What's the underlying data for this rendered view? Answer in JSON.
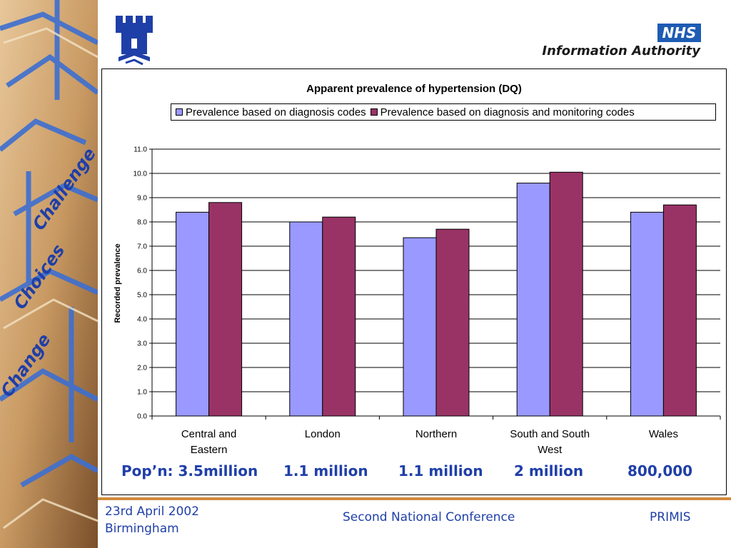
{
  "header": {
    "nhs_logo_text": "NHS",
    "org_name": "Information Authority"
  },
  "side_banner": {
    "words": [
      "Challenge",
      "Choices",
      "Change"
    ]
  },
  "chart_data": {
    "type": "bar",
    "title": "Apparent prevalence of hypertension (DQ)",
    "ylabel": "Recorded prevalence",
    "xlabel": "",
    "categories": [
      "Central and Eastern",
      "London",
      "Northern",
      "South and South West",
      "Wales"
    ],
    "series": [
      {
        "name": "Prevalence based on diagnosis codes",
        "color": "#9999ff",
        "values": [
          8.4,
          8.0,
          7.35,
          9.6,
          8.4
        ]
      },
      {
        "name": "Prevalence based on diagnosis and monitoring codes",
        "color": "#993366",
        "values": [
          8.8,
          8.2,
          7.7,
          10.05,
          8.7
        ]
      }
    ],
    "ylim": [
      0,
      11
    ],
    "yticks": [
      "0.0",
      "1.0",
      "2.0",
      "3.0",
      "4.0",
      "5.0",
      "6.0",
      "7.0",
      "8.0",
      "9.0",
      "10.0",
      "11.0"
    ],
    "grid": true,
    "legend_position": "top"
  },
  "population": {
    "labels": [
      "Pop’n: 3.5million",
      "1.1 million",
      "1.1 million",
      "2 million",
      "800,000"
    ]
  },
  "footer": {
    "date": "23rd April 2002",
    "location": "Birmingham",
    "event": "Second National Conference",
    "org": "PRIMIS"
  }
}
